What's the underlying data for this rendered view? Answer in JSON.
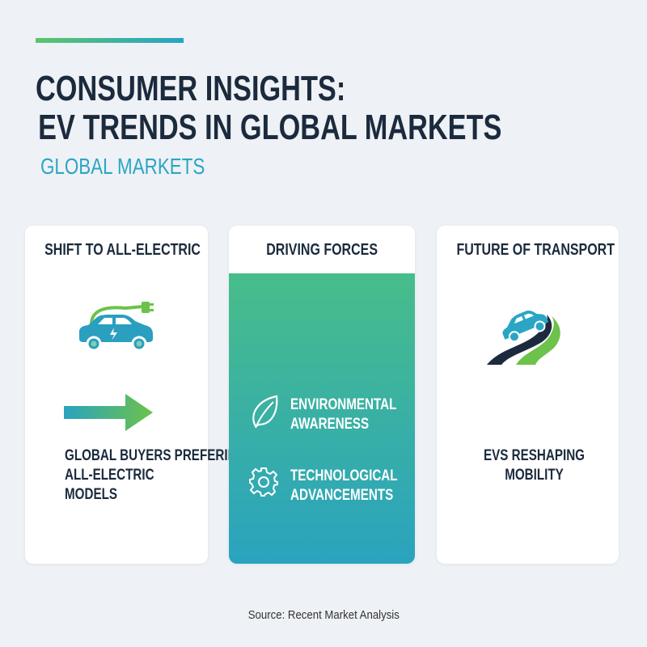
{
  "header": {
    "title_line1": "CONSUMER INSIGHTS:",
    "title_line2": "EV TRENDS IN GLOBAL MARKETS",
    "subtitle": "GLOBAL MARKETS"
  },
  "colors": {
    "dark": "#1b2a3d",
    "teal": "#2aa6c4",
    "green": "#5cc46e",
    "background": "#eef1f5"
  },
  "cards": [
    {
      "heading": "SHIFT TO ALL-ELECTRIC",
      "icons": [
        "electric-car-plug-icon",
        "arrow-right-icon"
      ],
      "text_lines": [
        "GLOBAL BUYERS PREFERING",
        "ALL-ELECTRIC",
        "MODELS"
      ]
    },
    {
      "heading": "DRIVING FORCES",
      "items": [
        {
          "icon": "leaf-icon",
          "lines": [
            "ENVIRONMENTAL",
            "AWARENESS"
          ]
        },
        {
          "icon": "gear-icon",
          "lines": [
            "TECHNOLOGICAL",
            "ADVANCEMENTS"
          ]
        }
      ]
    },
    {
      "heading": "FUTURE OF TRANSPORT",
      "icons": [
        "car-on-road-icon"
      ],
      "text_lines": [
        "EVS RESHAPING",
        "MOBILITY"
      ]
    }
  ],
  "footer": {
    "source": "Source: Recent Market Analysis"
  }
}
